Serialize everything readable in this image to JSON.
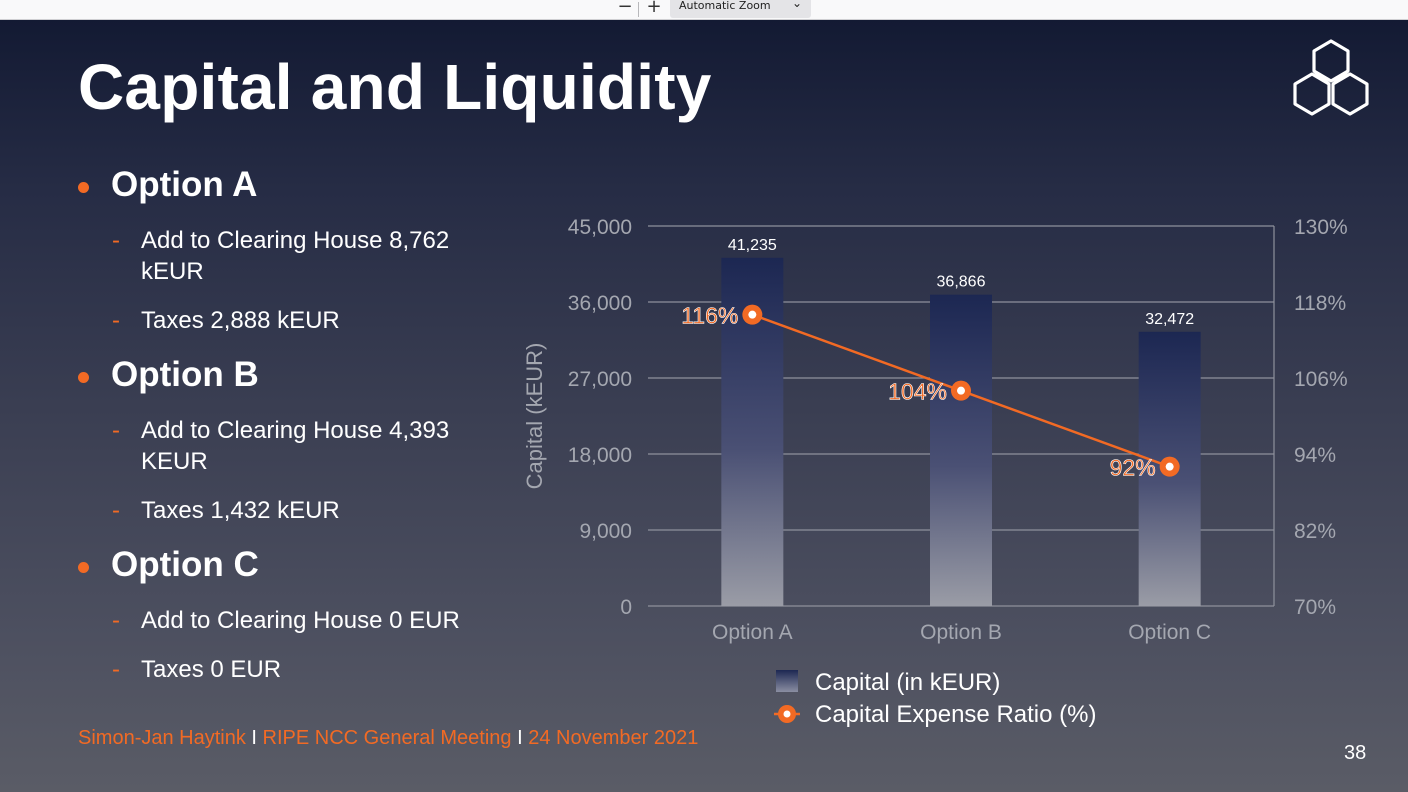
{
  "toolbar": {
    "zoom_out_label": "−",
    "zoom_in_label": "+",
    "zoom_select_value": "Automatic Zoom"
  },
  "slide": {
    "title": "Capital and Liquidity",
    "page_number": "38",
    "footer": {
      "author": "Simon-Jan Haytink",
      "separator": "I",
      "event": "RIPE NCC General Meeting",
      "date": "24 November 2021"
    },
    "accent_color": "#f26a24"
  },
  "bullets": [
    {
      "heading": "Option A",
      "items": [
        {
          "line1": "Add to Clearing House 8,762",
          "line2": "kEUR"
        },
        {
          "line1": "Taxes 2,888 kEUR"
        }
      ]
    },
    {
      "heading": "Option B",
      "items": [
        {
          "line1": "Add to Clearing House 4,393",
          "line2": "KEUR"
        },
        {
          "line1": "Taxes 1,432 kEUR"
        }
      ]
    },
    {
      "heading": "Option C",
      "items": [
        {
          "line1": "Add to Clearing House 0 EUR"
        },
        {
          "line1": "Taxes 0 EUR"
        }
      ]
    }
  ],
  "chart_data": {
    "type": "bar",
    "categories": [
      "Option A",
      "Option B",
      "Option C"
    ],
    "ylabel": "Capital (kEUR)",
    "ylim": [
      0,
      45000
    ],
    "y_ticks": [
      "0",
      "9,000",
      "18,000",
      "27,000",
      "36,000",
      "45,000"
    ],
    "y2lim": [
      70,
      130
    ],
    "y2_ticks": [
      "70%",
      "82%",
      "94%",
      "106%",
      "118%",
      "130%"
    ],
    "grid": true,
    "legend_position": "bottom",
    "series": [
      {
        "name": "Capital (in kEUR)",
        "type": "bar",
        "axis": "left",
        "values": [
          41235,
          36866,
          32472
        ],
        "labels": [
          "41,235",
          "36,866",
          "32,472"
        ],
        "color": "#1c2752"
      },
      {
        "name": "Capital Expense Ratio (%)",
        "type": "line",
        "axis": "right",
        "values": [
          116,
          104,
          92
        ],
        "labels": [
          "116%",
          "104%",
          "92%"
        ],
        "color": "#f26a24"
      }
    ]
  }
}
